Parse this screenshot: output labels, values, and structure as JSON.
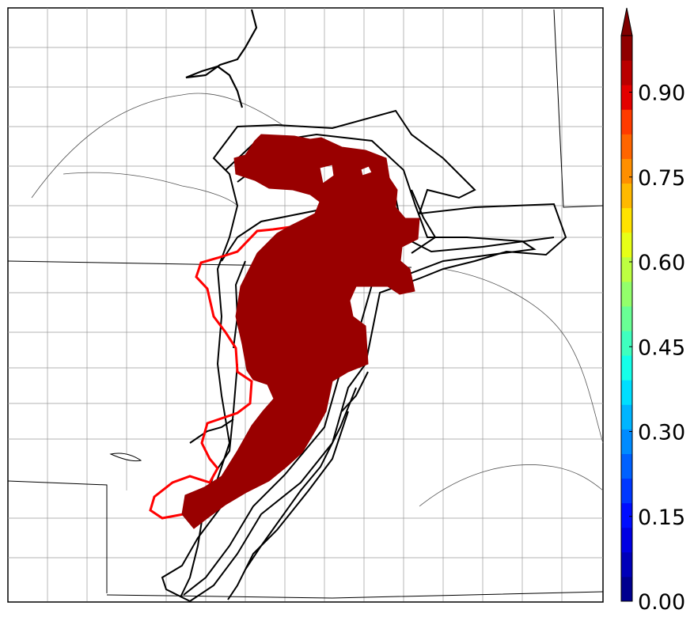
{
  "colorbar": {
    "tick_labels": [
      "0.00",
      "0.15",
      "0.30",
      "0.45",
      "0.60",
      "0.75",
      "0.90"
    ],
    "tick_values": [
      0.0,
      0.15,
      0.3,
      0.45,
      0.6,
      0.75,
      0.9
    ],
    "range": [
      0.0,
      1.0
    ],
    "bins": 20,
    "extend": "max",
    "colors": [
      "#00008f",
      "#0000b9",
      "#0000e3",
      "#000dff",
      "#0037ff",
      "#0061ff",
      "#008bff",
      "#00b5ff",
      "#00dfff",
      "#15ffe9",
      "#3fffbf",
      "#69ff95",
      "#93ff6b",
      "#bdff41",
      "#e7ff17",
      "#ffe300",
      "#ffb900",
      "#ff8f00",
      "#ff6500",
      "#ff3b00",
      "#e30000",
      "#b90000",
      "#8f0000"
    ],
    "extend_color": "#800000"
  },
  "map": {
    "probability_fill_color": "#990000",
    "observed_outline_color": "#ff0000",
    "ensemble_outline_color": "#000000"
  }
}
